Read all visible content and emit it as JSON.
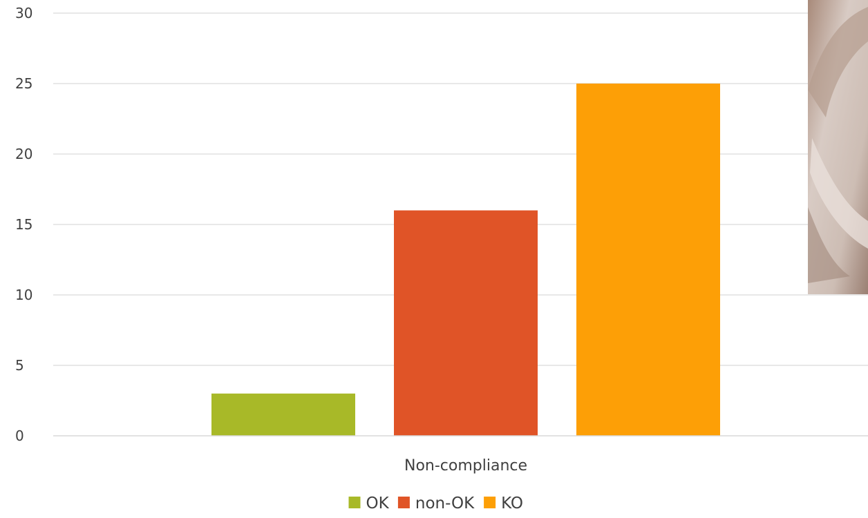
{
  "chart_data": {
    "type": "bar",
    "categories": [
      "Non-compliance"
    ],
    "series": [
      {
        "name": "OK",
        "values": [
          3
        ],
        "color": "#A8B928"
      },
      {
        "name": "non-OK",
        "values": [
          16
        ],
        "color": "#E05427"
      },
      {
        "name": "KO",
        "values": [
          25
        ],
        "color": "#FD9F06"
      }
    ],
    "title": "",
    "xlabel": "",
    "ylabel": "",
    "ylim": [
      0,
      30
    ],
    "yticks": [
      0,
      5,
      10,
      15,
      20,
      25,
      30
    ],
    "grid": true,
    "legend_position": "bottom"
  },
  "photo": {
    "description": "cropped photograph",
    "colors": [
      "#b9a194",
      "#d2c3bb",
      "#e4dbd6",
      "#9c8579"
    ]
  }
}
